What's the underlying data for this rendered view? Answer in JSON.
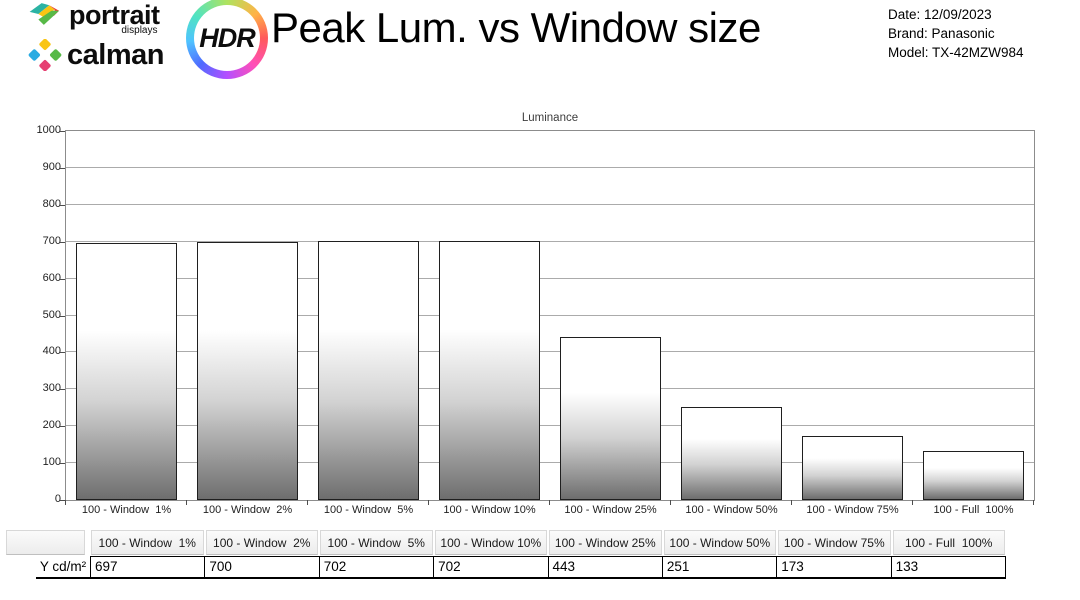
{
  "header": {
    "portrait_wordmark": "portrait",
    "portrait_sub": "displays",
    "calman_wordmark": "calman",
    "hdr_label": "HDR",
    "title": "Peak Lum. vs Window size",
    "meta": [
      {
        "label": "Date:",
        "value": "12/09/2023"
      },
      {
        "label": "Brand:",
        "value": "Panasonic"
      },
      {
        "label": "Model:",
        "value": "TX-42MZW984"
      }
    ]
  },
  "chart_data": {
    "type": "bar",
    "title": "Luminance",
    "categories": [
      "100 - Window  1%",
      "100 - Window  2%",
      "100 - Window  5%",
      "100 - Window 10%",
      "100 - Window 25%",
      "100 - Window 50%",
      "100 - Window 75%",
      "100 - Full  100%"
    ],
    "values": [
      697,
      700,
      702,
      702,
      443,
      251,
      173,
      133
    ],
    "xlabel": "",
    "ylabel": "",
    "ylim": [
      0,
      1000
    ],
    "ytick_interval": 100,
    "grid": true,
    "legend": "none",
    "bar_style": "white-to-gray vertical gradient, dark outline"
  },
  "table": {
    "row_label": "Y cd/m²",
    "columns": [
      "100 - Window  1%",
      "100 - Window  2%",
      "100 - Window  5%",
      "100 - Window 10%",
      "100 - Window 25%",
      "100 - Window 50%",
      "100 - Window 75%",
      "100 - Full  100%"
    ],
    "values": [
      "697",
      "700",
      "702",
      "702",
      "443",
      "251",
      "173",
      "133"
    ]
  },
  "colors": {
    "grid": "#ababab",
    "axis_border": "#8c8c8c",
    "bar_border": "#1f1f1f",
    "bar_bottom": "#6e6e6e",
    "text": "#000000"
  }
}
